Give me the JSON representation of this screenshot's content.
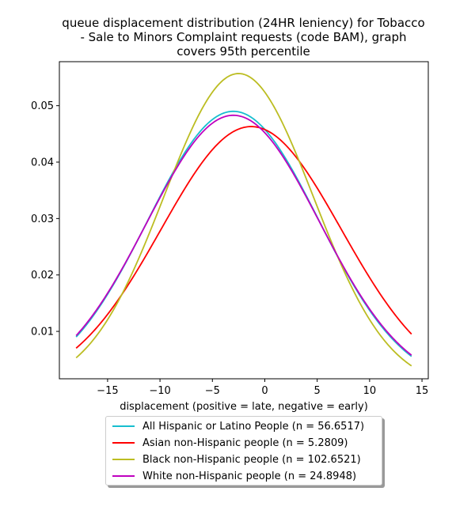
{
  "chart_data": {
    "type": "line",
    "title_lines": [
      "queue displacement distribution (24HR leniency) for Tobacco",
      "- Sale to Minors Complaint  requests (code BAM), graph",
      "covers 95th percentile"
    ],
    "xlabel": "displacement (positive = late, negative = early)",
    "ylabel": "",
    "xlim": [
      -19.6,
      15.6
    ],
    "ylim": [
      0.0016,
      0.0578
    ],
    "x_ticks": [
      -15,
      -10,
      -5,
      0,
      5,
      10,
      15
    ],
    "x_tick_labels": [
      "−15",
      "−10",
      "−5",
      "0",
      "5",
      "10",
      "15"
    ],
    "y_ticks": [
      0.01,
      0.02,
      0.03,
      0.04,
      0.05
    ],
    "y_tick_labels": [
      "0.01",
      "0.02",
      "0.03",
      "0.04",
      "0.05"
    ],
    "grid": false,
    "legend_position": "bottom-center",
    "x_range": [
      -18,
      14
    ],
    "series": [
      {
        "name": "All Hispanic or Latino People (n = 56.6517)",
        "color": "#17becf",
        "mean": -3.0,
        "std": 8.15,
        "peak": 0.049
      },
      {
        "name": "Asian non-Hispanic people (n = 5.2809)",
        "color": "#ff0000",
        "mean": -1.3,
        "std": 8.6,
        "peak": 0.0463
      },
      {
        "name": "Black non-Hispanic people (n = 102.6521)",
        "color": "#bcbd22",
        "mean": -2.5,
        "std": 7.15,
        "peak": 0.0557
      },
      {
        "name": "White non-Hispanic people (n = 24.8948)",
        "color": "#bf00bf",
        "mean": -3.0,
        "std": 8.25,
        "peak": 0.0483
      }
    ]
  }
}
